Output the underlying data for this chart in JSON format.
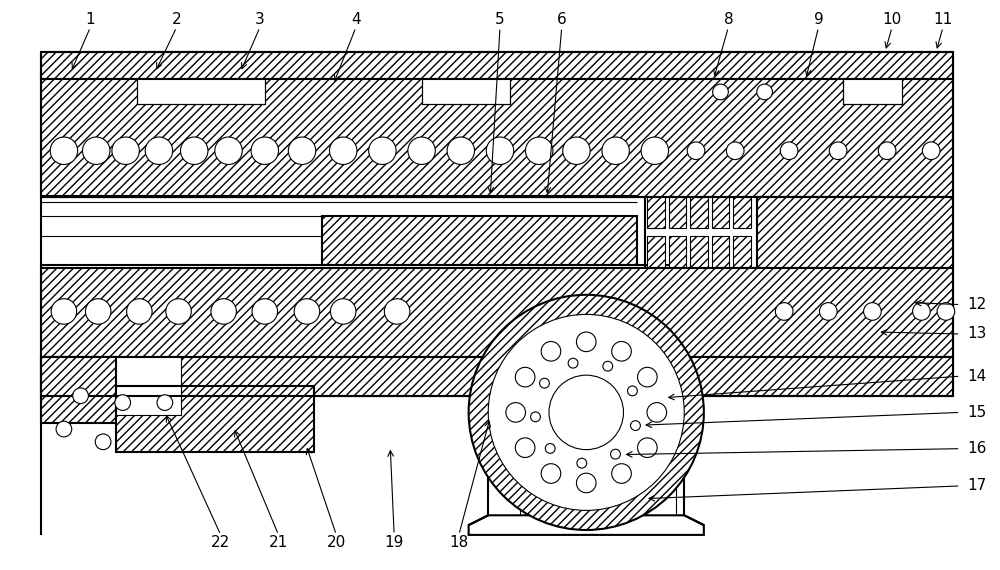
{
  "bg": "#ffffff",
  "lc": "#000000",
  "lw_main": 1.5,
  "lw_thin": 0.8,
  "label_fs": 11,
  "fig_w": 10.0,
  "fig_h": 5.7,
  "dpi": 100,
  "top_labels": [
    [
      "1",
      82,
      22,
      62,
      68
    ],
    [
      "2",
      170,
      22,
      148,
      68
    ],
    [
      "3",
      255,
      22,
      235,
      68
    ],
    [
      "4",
      353,
      22,
      330,
      80
    ],
    [
      "5",
      500,
      22,
      490,
      195
    ],
    [
      "6",
      563,
      22,
      548,
      195
    ],
    [
      "8",
      733,
      22,
      718,
      75
    ],
    [
      "9",
      825,
      22,
      812,
      75
    ],
    [
      "10",
      900,
      22,
      893,
      47
    ],
    [
      "11",
      952,
      22,
      945,
      47
    ]
  ],
  "right_labels": [
    [
      "12",
      975,
      305,
      920,
      303
    ],
    [
      "13",
      975,
      335,
      885,
      333
    ],
    [
      "14",
      975,
      378,
      668,
      400
    ],
    [
      "15",
      975,
      415,
      645,
      428
    ],
    [
      "16",
      975,
      452,
      625,
      458
    ],
    [
      "17",
      975,
      490,
      648,
      503
    ]
  ],
  "bottom_labels": [
    [
      "18",
      458,
      540,
      490,
      420
    ],
    [
      "19",
      392,
      540,
      388,
      450
    ],
    [
      "20",
      333,
      540,
      302,
      448
    ],
    [
      "21",
      274,
      540,
      228,
      430
    ],
    [
      "22",
      215,
      540,
      158,
      415
    ]
  ]
}
